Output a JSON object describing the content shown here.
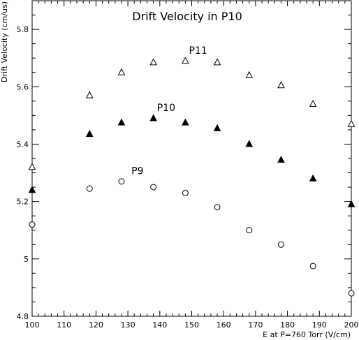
{
  "chart_data": {
    "type": "scatter",
    "title": "Drift Velocity in P10",
    "xlabel": "E at P=760 Torr (V/cm)",
    "ylabel": "Drift Velocity (cm/us)",
    "xlim": [
      100,
      200
    ],
    "ylim": [
      4.8,
      5.9
    ],
    "x_ticks": [
      100,
      110,
      120,
      130,
      140,
      150,
      160,
      170,
      180,
      190,
      200
    ],
    "y_ticks": [
      4.8,
      5,
      5.2,
      5.4,
      5.6,
      5.8
    ],
    "y_tick_labels": [
      "4.8",
      "5",
      "5.2",
      "5.4",
      "5.6",
      "5.8"
    ],
    "grid": false,
    "series": [
      {
        "name": "P11",
        "marker": "open-triangle",
        "x": [
          100,
          118,
          128,
          138,
          148,
          158,
          168,
          178,
          188,
          200
        ],
        "y": [
          5.32,
          5.57,
          5.65,
          5.685,
          5.69,
          5.685,
          5.64,
          5.605,
          5.54,
          5.47
        ]
      },
      {
        "name": "P10",
        "marker": "filled-triangle",
        "x": [
          100,
          118,
          128,
          138,
          148,
          158,
          168,
          178,
          188,
          200
        ],
        "y": [
          5.24,
          5.435,
          5.475,
          5.49,
          5.475,
          5.455,
          5.4,
          5.345,
          5.28,
          5.19
        ]
      },
      {
        "name": "P9",
        "marker": "open-circle",
        "x": [
          100,
          118,
          128,
          138,
          148,
          158,
          168,
          178,
          188,
          200
        ],
        "y": [
          5.12,
          5.245,
          5.27,
          5.25,
          5.23,
          5.18,
          5.1,
          5.05,
          4.975,
          4.88
        ]
      }
    ],
    "annotations": [
      {
        "text": "P11",
        "x": 152,
        "y": 5.715
      },
      {
        "text": "P10",
        "x": 142,
        "y": 5.515
      },
      {
        "text": "P9",
        "x": 133,
        "y": 5.295
      }
    ]
  }
}
